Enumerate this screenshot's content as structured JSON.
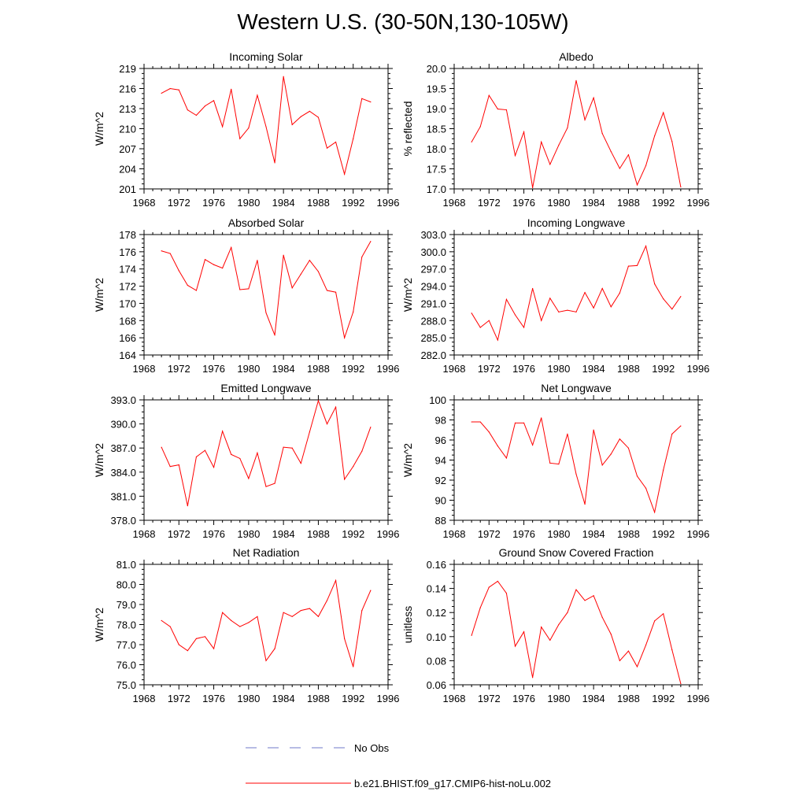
{
  "title": "Western U.S. (30-50N,130-105W)",
  "legend": {
    "obs_label": "No Obs",
    "obs_color": "#6f79c9",
    "model_label": "b.e21.BHIST.f09_g17.CMIP6-hist-noLu.002",
    "model_color": "#ff0000"
  },
  "chart_data": [
    {
      "type": "line",
      "title": "Incoming Solar",
      "ylabel": "W/m^2",
      "xlim": [
        1968,
        1996
      ],
      "xticks": [
        1968,
        1972,
        1976,
        1980,
        1984,
        1988,
        1992,
        1996
      ],
      "ylim": [
        201,
        219
      ],
      "yticks": [
        201,
        204,
        207,
        210,
        213,
        216,
        219
      ],
      "ytick_decimals": 0,
      "x": [
        1970,
        1971,
        1972,
        1973,
        1974,
        1975,
        1976,
        1977,
        1978,
        1979,
        1980,
        1981,
        1982,
        1983,
        1984,
        1985,
        1986,
        1987,
        1988,
        1989,
        1990,
        1991,
        1992,
        1993,
        1994
      ],
      "series": [
        {
          "values": [
            215.3,
            216.0,
            215.8,
            212.8,
            212.0,
            213.4,
            214.2,
            210.3,
            215.9,
            208.5,
            210.1,
            215.0,
            210.3,
            204.9,
            217.8,
            210.6,
            211.8,
            212.6,
            211.7,
            207.1,
            208.0,
            203.2,
            208.5,
            214.5,
            214.0
          ]
        }
      ]
    },
    {
      "type": "line",
      "title": "Albedo",
      "ylabel": "% reflected",
      "xlim": [
        1968,
        1996
      ],
      "xticks": [
        1968,
        1972,
        1976,
        1980,
        1984,
        1988,
        1992,
        1996
      ],
      "ylim": [
        17.0,
        20.0
      ],
      "yticks": [
        17.0,
        17.5,
        18.0,
        18.5,
        19.0,
        19.5,
        20.0
      ],
      "ytick_decimals": 1,
      "x": [
        1970,
        1971,
        1972,
        1973,
        1974,
        1975,
        1976,
        1977,
        1978,
        1979,
        1980,
        1981,
        1982,
        1983,
        1984,
        1985,
        1986,
        1987,
        1988,
        1989,
        1990,
        1991,
        1992,
        1993,
        1994
      ],
      "series": [
        {
          "values": [
            18.17,
            18.55,
            19.33,
            18.99,
            18.97,
            17.83,
            18.42,
            17.03,
            18.17,
            17.61,
            18.09,
            18.52,
            19.7,
            18.72,
            19.27,
            18.38,
            17.93,
            17.51,
            17.85,
            17.1,
            17.58,
            18.32,
            18.9,
            18.18,
            17.05
          ]
        }
      ]
    },
    {
      "type": "line",
      "title": "Absorbed Solar",
      "ylabel": "W/m^2",
      "xlim": [
        1968,
        1996
      ],
      "xticks": [
        1968,
        1972,
        1976,
        1980,
        1984,
        1988,
        1992,
        1996
      ],
      "ylim": [
        164,
        178
      ],
      "yticks": [
        164,
        166,
        168,
        170,
        172,
        174,
        176,
        178
      ],
      "ytick_decimals": 0,
      "x": [
        1970,
        1971,
        1972,
        1973,
        1974,
        1975,
        1976,
        1977,
        1978,
        1979,
        1980,
        1981,
        1982,
        1983,
        1984,
        1985,
        1986,
        1987,
        1988,
        1989,
        1990,
        1991,
        1992,
        1993,
        1994
      ],
      "series": [
        {
          "values": [
            176.1,
            175.8,
            173.8,
            172.1,
            171.5,
            175.1,
            174.5,
            174.1,
            176.5,
            171.6,
            171.7,
            175.0,
            168.9,
            166.3,
            175.6,
            171.8,
            173.4,
            175.0,
            173.7,
            171.5,
            171.3,
            166.0,
            169.0,
            175.4,
            177.2
          ]
        }
      ]
    },
    {
      "type": "line",
      "title": "Incoming Longwave",
      "ylabel": "W/m^2",
      "xlim": [
        1968,
        1996
      ],
      "xticks": [
        1968,
        1972,
        1976,
        1980,
        1984,
        1988,
        1992,
        1996
      ],
      "ylim": [
        282.0,
        303.0
      ],
      "yticks": [
        282.0,
        285.0,
        288.0,
        291.0,
        294.0,
        297.0,
        300.0,
        303.0
      ],
      "ytick_decimals": 1,
      "x": [
        1970,
        1971,
        1972,
        1973,
        1974,
        1975,
        1976,
        1977,
        1978,
        1979,
        1980,
        1981,
        1982,
        1983,
        1984,
        1985,
        1986,
        1987,
        1988,
        1989,
        1990,
        1991,
        1992,
        1993,
        1994
      ],
      "series": [
        {
          "values": [
            289.3,
            286.8,
            288.0,
            284.6,
            291.7,
            289.0,
            286.8,
            293.6,
            288.0,
            291.9,
            289.5,
            289.8,
            289.5,
            292.9,
            290.2,
            293.6,
            290.4,
            292.8,
            297.5,
            297.6,
            301.0,
            294.4,
            291.8,
            290.0,
            292.2
          ]
        }
      ]
    },
    {
      "type": "line",
      "title": "Emitted Longwave",
      "ylabel": "W/m^2",
      "xlim": [
        1968,
        1996
      ],
      "xticks": [
        1968,
        1972,
        1976,
        1980,
        1984,
        1988,
        1992,
        1996
      ],
      "ylim": [
        378.0,
        393.0
      ],
      "yticks": [
        378.0,
        381.0,
        384.0,
        387.0,
        390.0,
        393.0
      ],
      "ytick_decimals": 1,
      "x": [
        1970,
        1971,
        1972,
        1973,
        1974,
        1975,
        1976,
        1977,
        1978,
        1979,
        1980,
        1981,
        1982,
        1983,
        1984,
        1985,
        1986,
        1987,
        1988,
        1989,
        1990,
        1991,
        1992,
        1993,
        1994
      ],
      "series": [
        {
          "values": [
            387.1,
            384.7,
            384.9,
            379.8,
            385.9,
            386.7,
            384.6,
            389.1,
            386.2,
            385.7,
            383.2,
            386.4,
            382.2,
            382.6,
            387.1,
            387.0,
            385.1,
            389.0,
            392.9,
            390.0,
            392.1,
            383.1,
            384.7,
            386.6,
            389.6
          ]
        }
      ]
    },
    {
      "type": "line",
      "title": "Net Longwave",
      "ylabel": "W/m^2",
      "xlim": [
        1968,
        1996
      ],
      "xticks": [
        1968,
        1972,
        1976,
        1980,
        1984,
        1988,
        1992,
        1996
      ],
      "ylim": [
        88,
        100
      ],
      "yticks": [
        88,
        90,
        92,
        94,
        96,
        98,
        100
      ],
      "ytick_decimals": 0,
      "x": [
        1970,
        1971,
        1972,
        1973,
        1974,
        1975,
        1976,
        1977,
        1978,
        1979,
        1980,
        1981,
        1982,
        1983,
        1984,
        1985,
        1986,
        1987,
        1988,
        1989,
        1990,
        1991,
        1992,
        1993,
        1994
      ],
      "series": [
        {
          "values": [
            97.8,
            97.8,
            96.8,
            95.4,
            94.2,
            97.7,
            97.7,
            95.5,
            98.2,
            93.7,
            93.6,
            96.6,
            92.6,
            89.6,
            97.0,
            93.5,
            94.6,
            96.1,
            95.2,
            92.4,
            91.2,
            88.8,
            93.0,
            96.6,
            97.4
          ]
        }
      ]
    },
    {
      "type": "line",
      "title": "Net Radiation",
      "ylabel": "W/m^2",
      "xlim": [
        1968,
        1996
      ],
      "xticks": [
        1968,
        1972,
        1976,
        1980,
        1984,
        1988,
        1992,
        1996
      ],
      "ylim": [
        75.0,
        81.0
      ],
      "yticks": [
        75.0,
        76.0,
        77.0,
        78.0,
        79.0,
        80.0,
        81.0
      ],
      "ytick_decimals": 1,
      "x": [
        1970,
        1971,
        1972,
        1973,
        1974,
        1975,
        1976,
        1977,
        1978,
        1979,
        1980,
        1981,
        1982,
        1983,
        1984,
        1985,
        1986,
        1987,
        1988,
        1989,
        1990,
        1991,
        1992,
        1993,
        1994
      ],
      "series": [
        {
          "values": [
            78.2,
            77.9,
            77.0,
            76.7,
            77.3,
            77.4,
            76.8,
            78.6,
            78.2,
            77.9,
            78.1,
            78.4,
            76.2,
            76.8,
            78.6,
            78.4,
            78.7,
            78.8,
            78.4,
            79.2,
            80.2,
            77.3,
            75.9,
            78.7,
            79.7
          ]
        }
      ]
    },
    {
      "type": "line",
      "title": "Ground Snow Covered Fraction",
      "ylabel": "unitless",
      "xlim": [
        1968,
        1996
      ],
      "xticks": [
        1968,
        1972,
        1976,
        1980,
        1984,
        1988,
        1992,
        1996
      ],
      "ylim": [
        0.06,
        0.16
      ],
      "yticks": [
        0.06,
        0.08,
        0.1,
        0.12,
        0.14,
        0.16
      ],
      "ytick_decimals": 2,
      "x": [
        1970,
        1971,
        1972,
        1973,
        1974,
        1975,
        1976,
        1977,
        1978,
        1979,
        1980,
        1981,
        1982,
        1983,
        1984,
        1985,
        1986,
        1987,
        1988,
        1989,
        1990,
        1991,
        1992,
        1993,
        1994
      ],
      "series": [
        {
          "values": [
            0.101,
            0.124,
            0.141,
            0.146,
            0.136,
            0.092,
            0.104,
            0.066,
            0.108,
            0.097,
            0.11,
            0.12,
            0.139,
            0.13,
            0.134,
            0.116,
            0.102,
            0.08,
            0.088,
            0.075,
            0.093,
            0.113,
            0.119,
            0.089,
            0.061
          ]
        }
      ]
    }
  ]
}
